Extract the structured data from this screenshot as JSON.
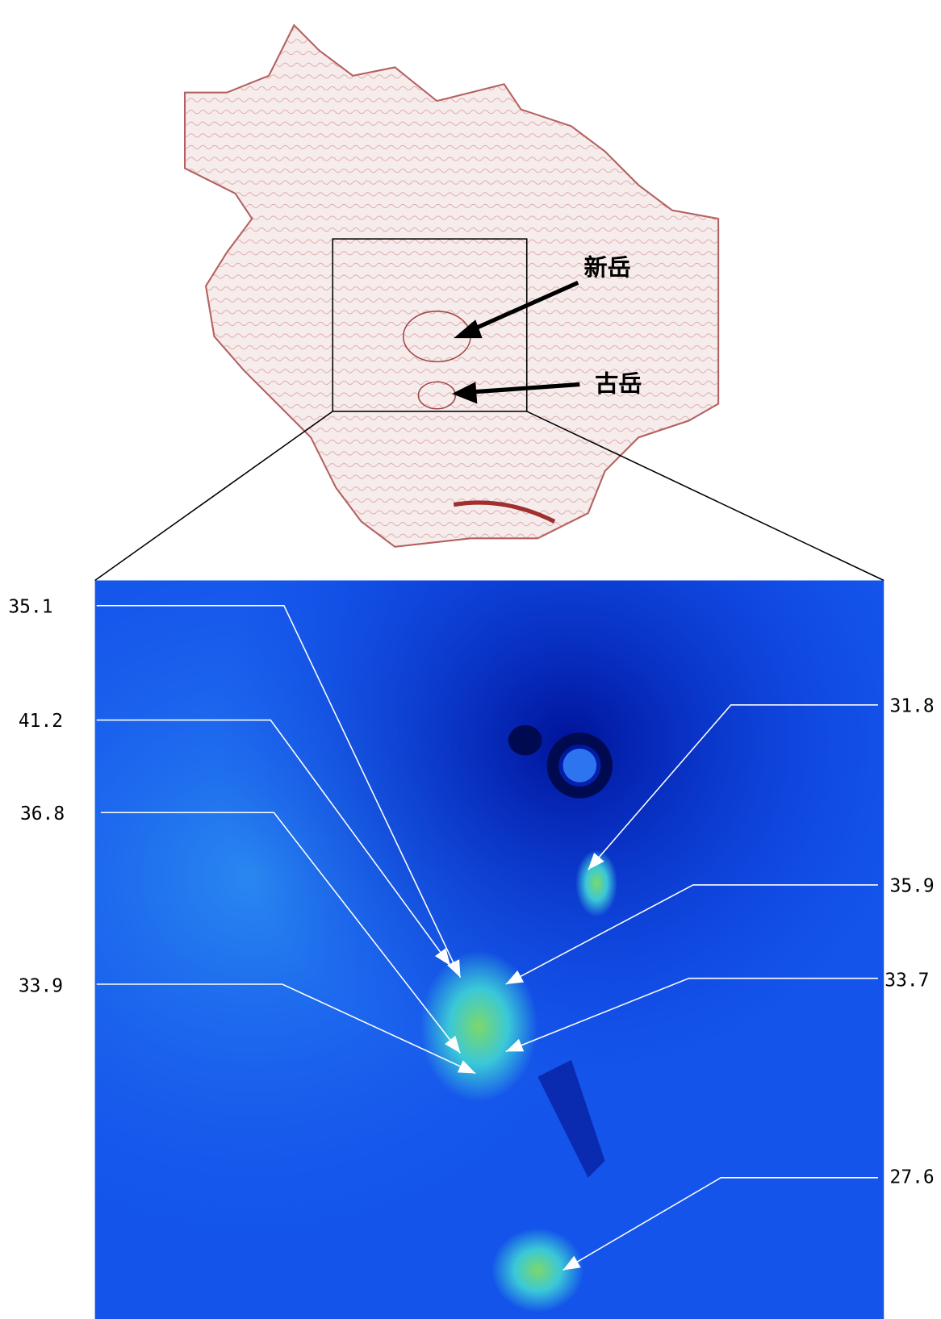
{
  "map": {
    "peaks": [
      "新岳",
      "古岳"
    ]
  },
  "thermal": {
    "readings": [
      35.1,
      41.2,
      36.8,
      33.9,
      31.8,
      35.9,
      33.7,
      27.6
    ]
  }
}
